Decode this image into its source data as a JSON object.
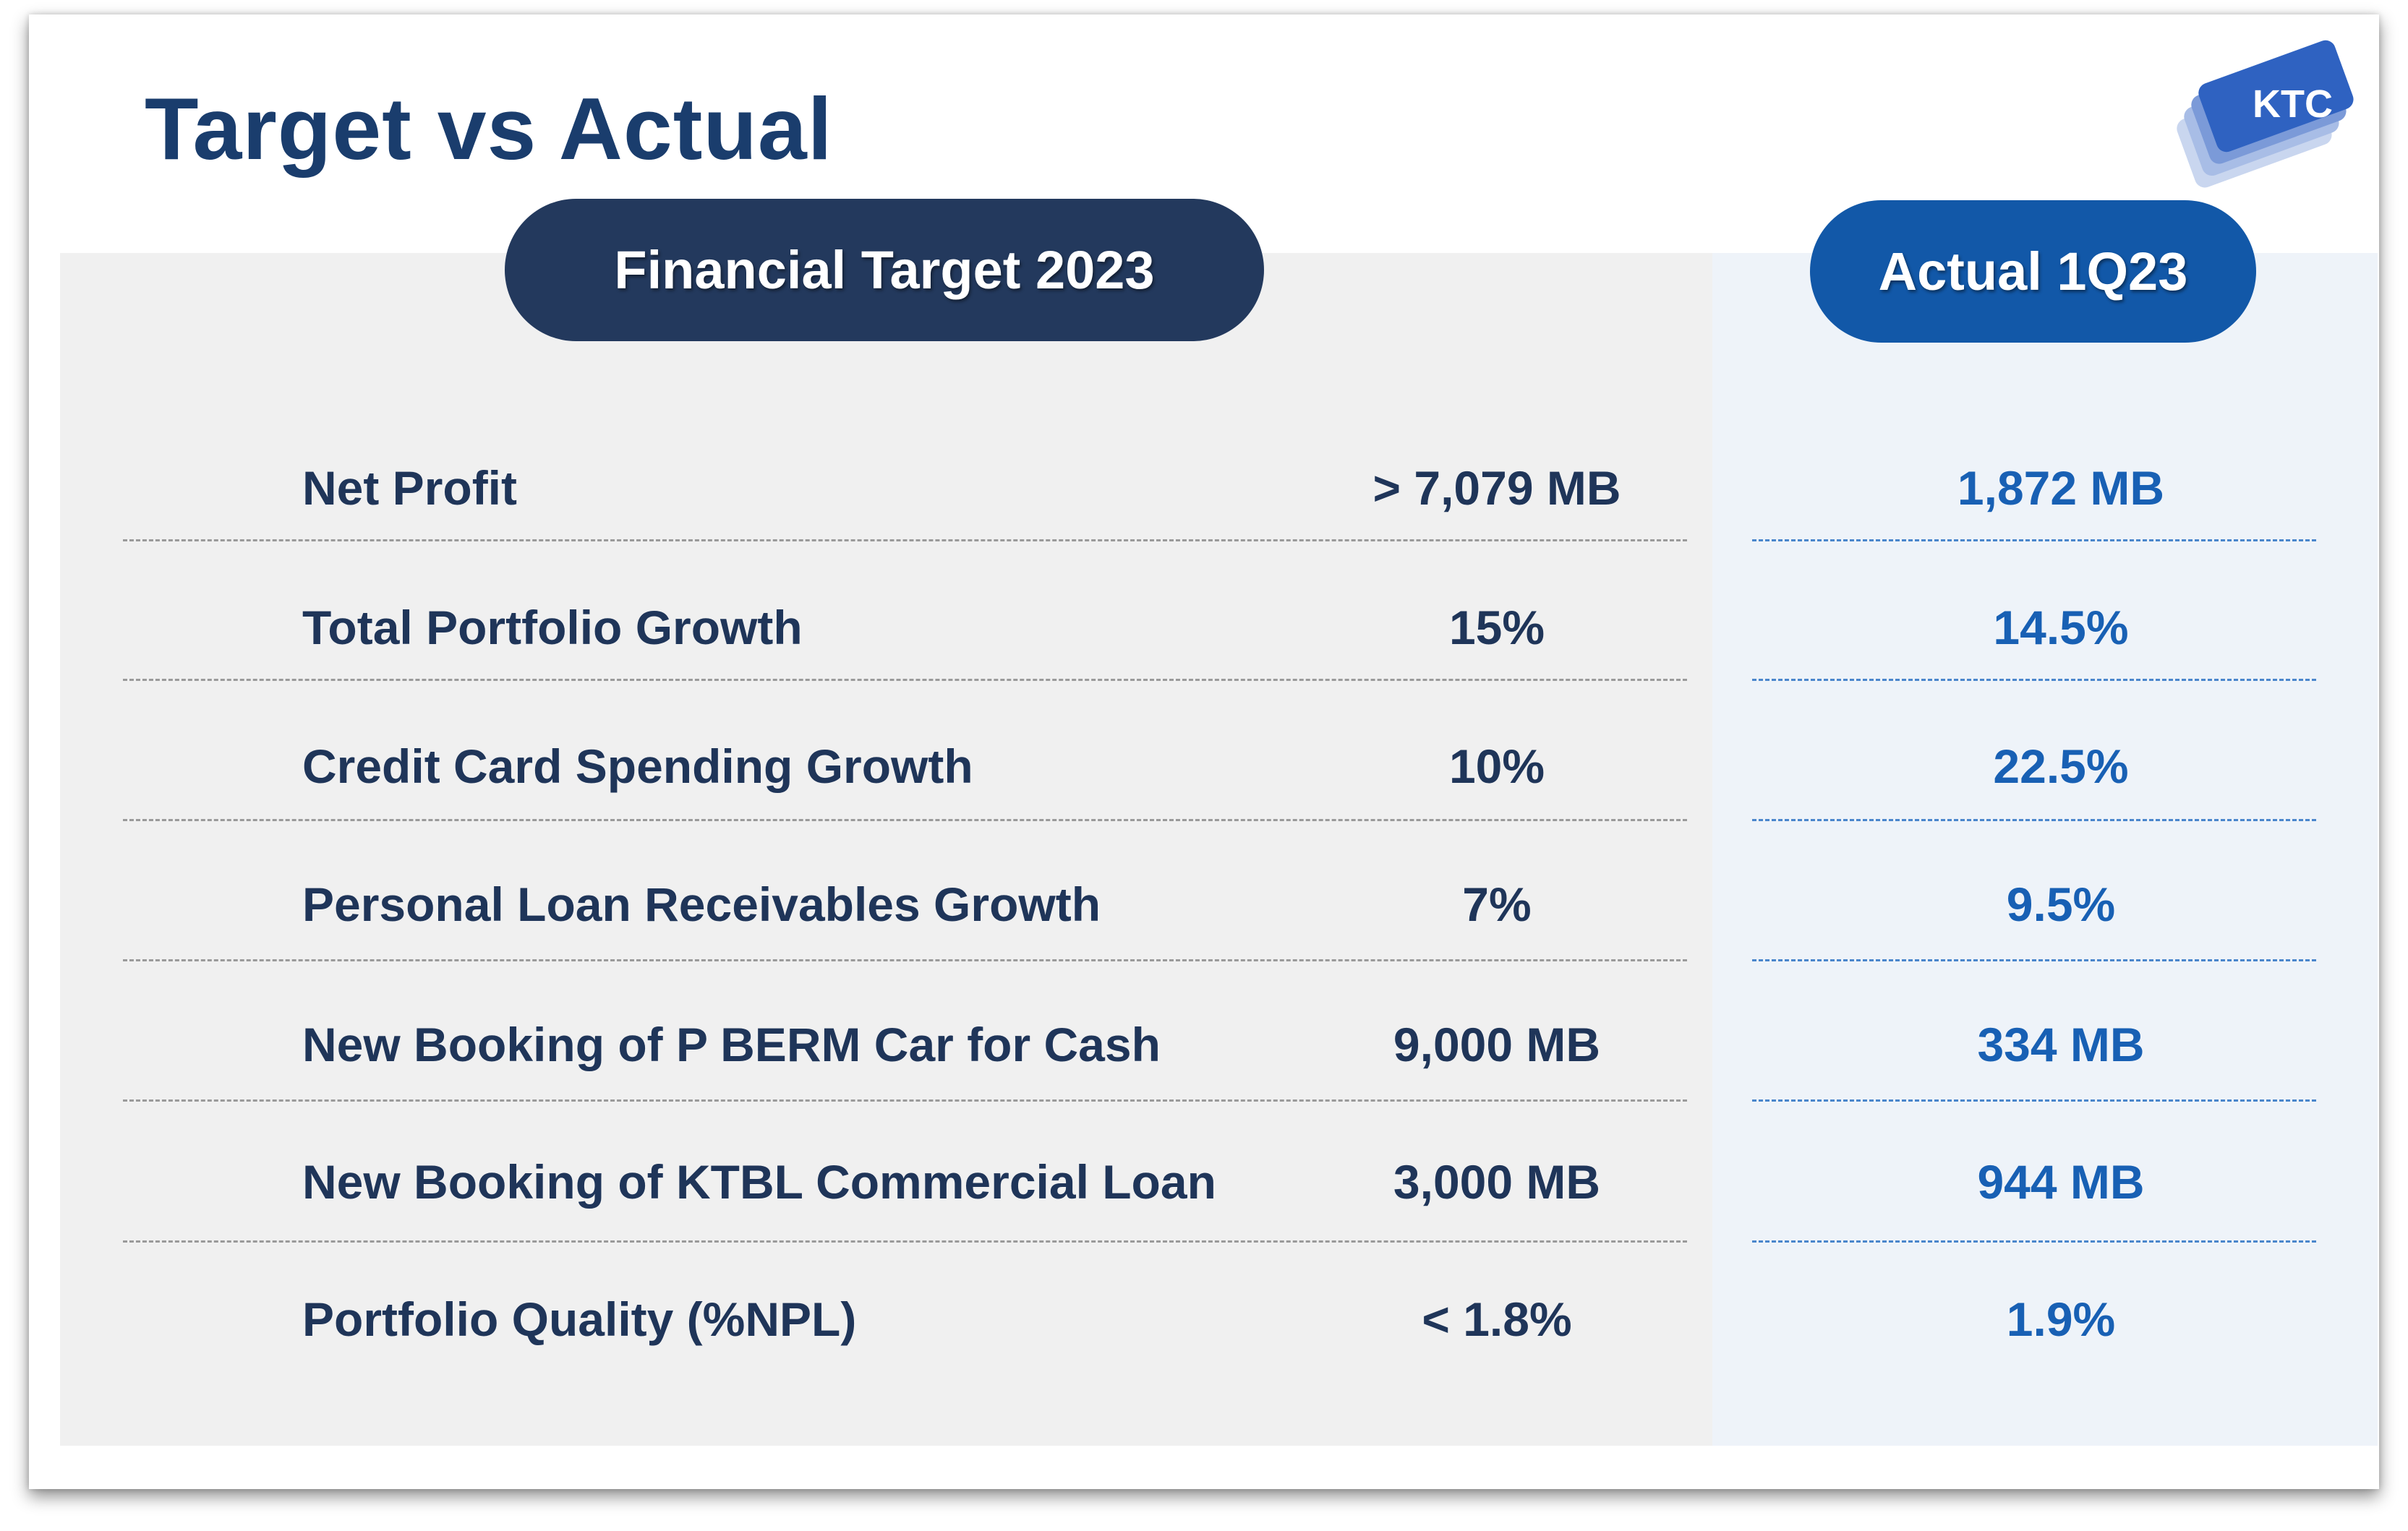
{
  "title": "Target vs Actual",
  "logo": {
    "text": "KTC",
    "icon": "ktc-logo-icon"
  },
  "columns": {
    "target_header": "Financial Target 2023",
    "actual_header": "Actual 1Q23"
  },
  "rows": [
    {
      "metric": "Net Profit",
      "target": "> 7,079 MB",
      "actual": "1,872 MB"
    },
    {
      "metric": "Total Portfolio Growth",
      "target": "15%",
      "actual": "14.5%"
    },
    {
      "metric": "Credit Card Spending Growth",
      "target": "10%",
      "actual": "22.5%"
    },
    {
      "metric": "Personal Loan Receivables Growth",
      "target": "7%",
      "actual": "9.5%"
    },
    {
      "metric": "New Booking of  P BERM Car for Cash",
      "target": "9,000 MB",
      "actual": "334 MB"
    },
    {
      "metric": "New Booking of  KTBL Commercial Loan",
      "target": "3,000 MB",
      "actual": "944 MB"
    },
    {
      "metric": "Portfolio Quality (%NPL)",
      "target": "< 1.8%",
      "actual": "1.9%"
    }
  ],
  "colors": {
    "title": "#1a3d6d",
    "target_pill": "#23395d",
    "actual_pill": "#1258a8",
    "actual_text": "#1860b4",
    "target_text": "#1f3559"
  }
}
